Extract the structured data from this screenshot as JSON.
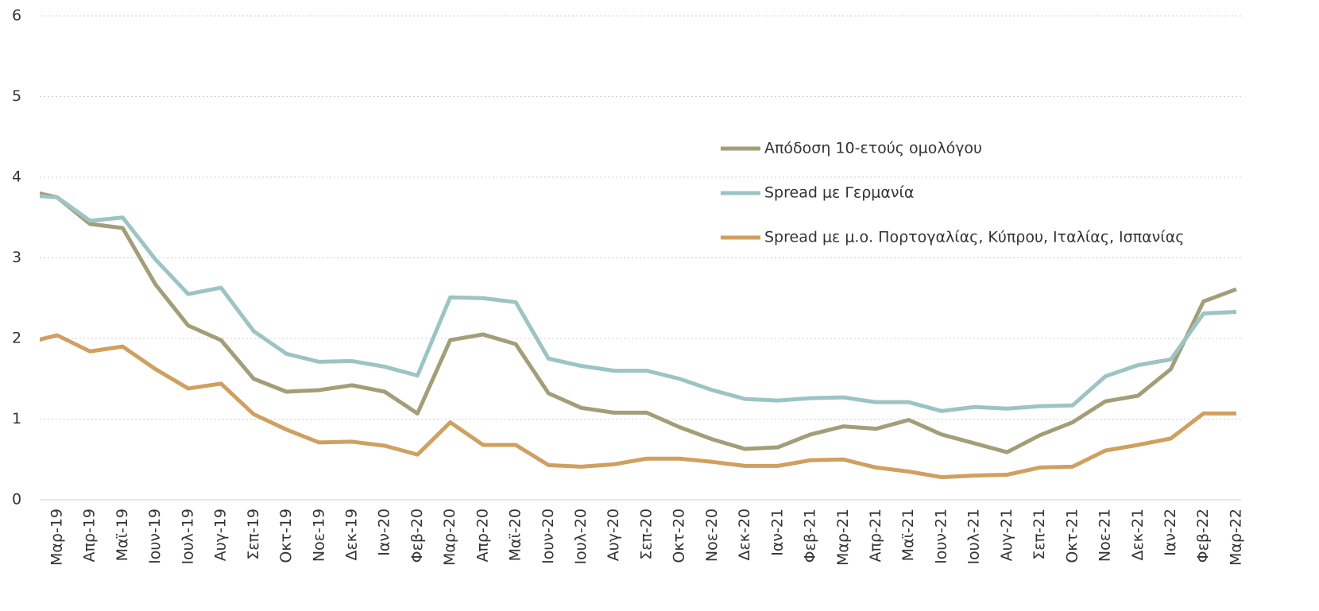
{
  "chart_data": {
    "type": "line",
    "categories": [
      null,
      "Μαρ-19",
      "Απρ-19",
      "Μαϊ-19",
      "Ιουν-19",
      "Ιουλ-19",
      "Αυγ-19",
      "Σεπ-19",
      "Οκτ-19",
      "Νοε-19",
      "Δεκ-19",
      "Ιαν-20",
      "Φεβ-20",
      "Μαρ-20",
      "Απρ-20",
      "Μαϊ-20",
      "Ιουν-20",
      "Ιουλ-20",
      "Αυγ-20",
      "Σεπ-20",
      "Οκτ-20",
      "Νοε-20",
      "Δεκ-20",
      "Ιαν-21",
      "Φεβ-21",
      "Μαρ-21",
      "Απρ-21",
      "Μαϊ-21",
      "Ιουν-21",
      "Ιουλ-21",
      "Αυγ-21",
      "Σεπ-21",
      "Οκτ-21",
      "Νοε-21",
      "Δεκ-21",
      "Ιαν-22",
      "Φεβ-22",
      "Μαρ-22"
    ],
    "series": [
      {
        "name": "Απόδοση 10-ετούς ομολόγου",
        "color": "#a39e78",
        "values": [
          3.84,
          3.75,
          3.42,
          3.37,
          2.67,
          2.16,
          1.98,
          1.5,
          1.34,
          1.36,
          1.42,
          1.34,
          1.07,
          1.98,
          2.05,
          1.93,
          1.32,
          1.14,
          1.08,
          1.08,
          0.9,
          0.75,
          0.63,
          0.65,
          0.81,
          0.91,
          0.88,
          0.99,
          0.81,
          0.7,
          0.59,
          0.8,
          0.96,
          1.22,
          1.29,
          1.62,
          2.46,
          2.61
        ]
      },
      {
        "name": "Spread με Γερμανία",
        "color": "#9cc4c4",
        "values": [
          3.78,
          3.75,
          3.46,
          3.5,
          2.98,
          2.55,
          2.63,
          2.09,
          1.81,
          1.71,
          1.72,
          1.65,
          1.54,
          2.51,
          2.5,
          2.45,
          1.75,
          1.66,
          1.6,
          1.6,
          1.5,
          1.36,
          1.25,
          1.23,
          1.26,
          1.27,
          1.21,
          1.21,
          1.1,
          1.15,
          1.13,
          1.16,
          1.17,
          1.53,
          1.67,
          1.74,
          2.31,
          2.33
        ]
      },
      {
        "name": "Spread με μ.ο. Πορτογαλίας, Κύπρου, Ιταλίας, Ισπανίας",
        "color": "#cfa060",
        "values": [
          1.94,
          2.04,
          1.84,
          1.9,
          1.62,
          1.38,
          1.44,
          1.06,
          0.87,
          0.71,
          0.72,
          0.67,
          0.56,
          0.96,
          0.68,
          0.68,
          0.43,
          0.41,
          0.44,
          0.51,
          0.51,
          0.47,
          0.42,
          0.42,
          0.49,
          0.5,
          0.4,
          0.35,
          0.28,
          0.3,
          0.31,
          0.4,
          0.41,
          0.61,
          0.68,
          0.76,
          1.07,
          1.07
        ]
      }
    ],
    "ylim": [
      0,
      6
    ],
    "yticks": [
      0,
      1,
      2,
      3,
      4,
      5,
      6
    ],
    "grid": true,
    "legend": "right"
  }
}
